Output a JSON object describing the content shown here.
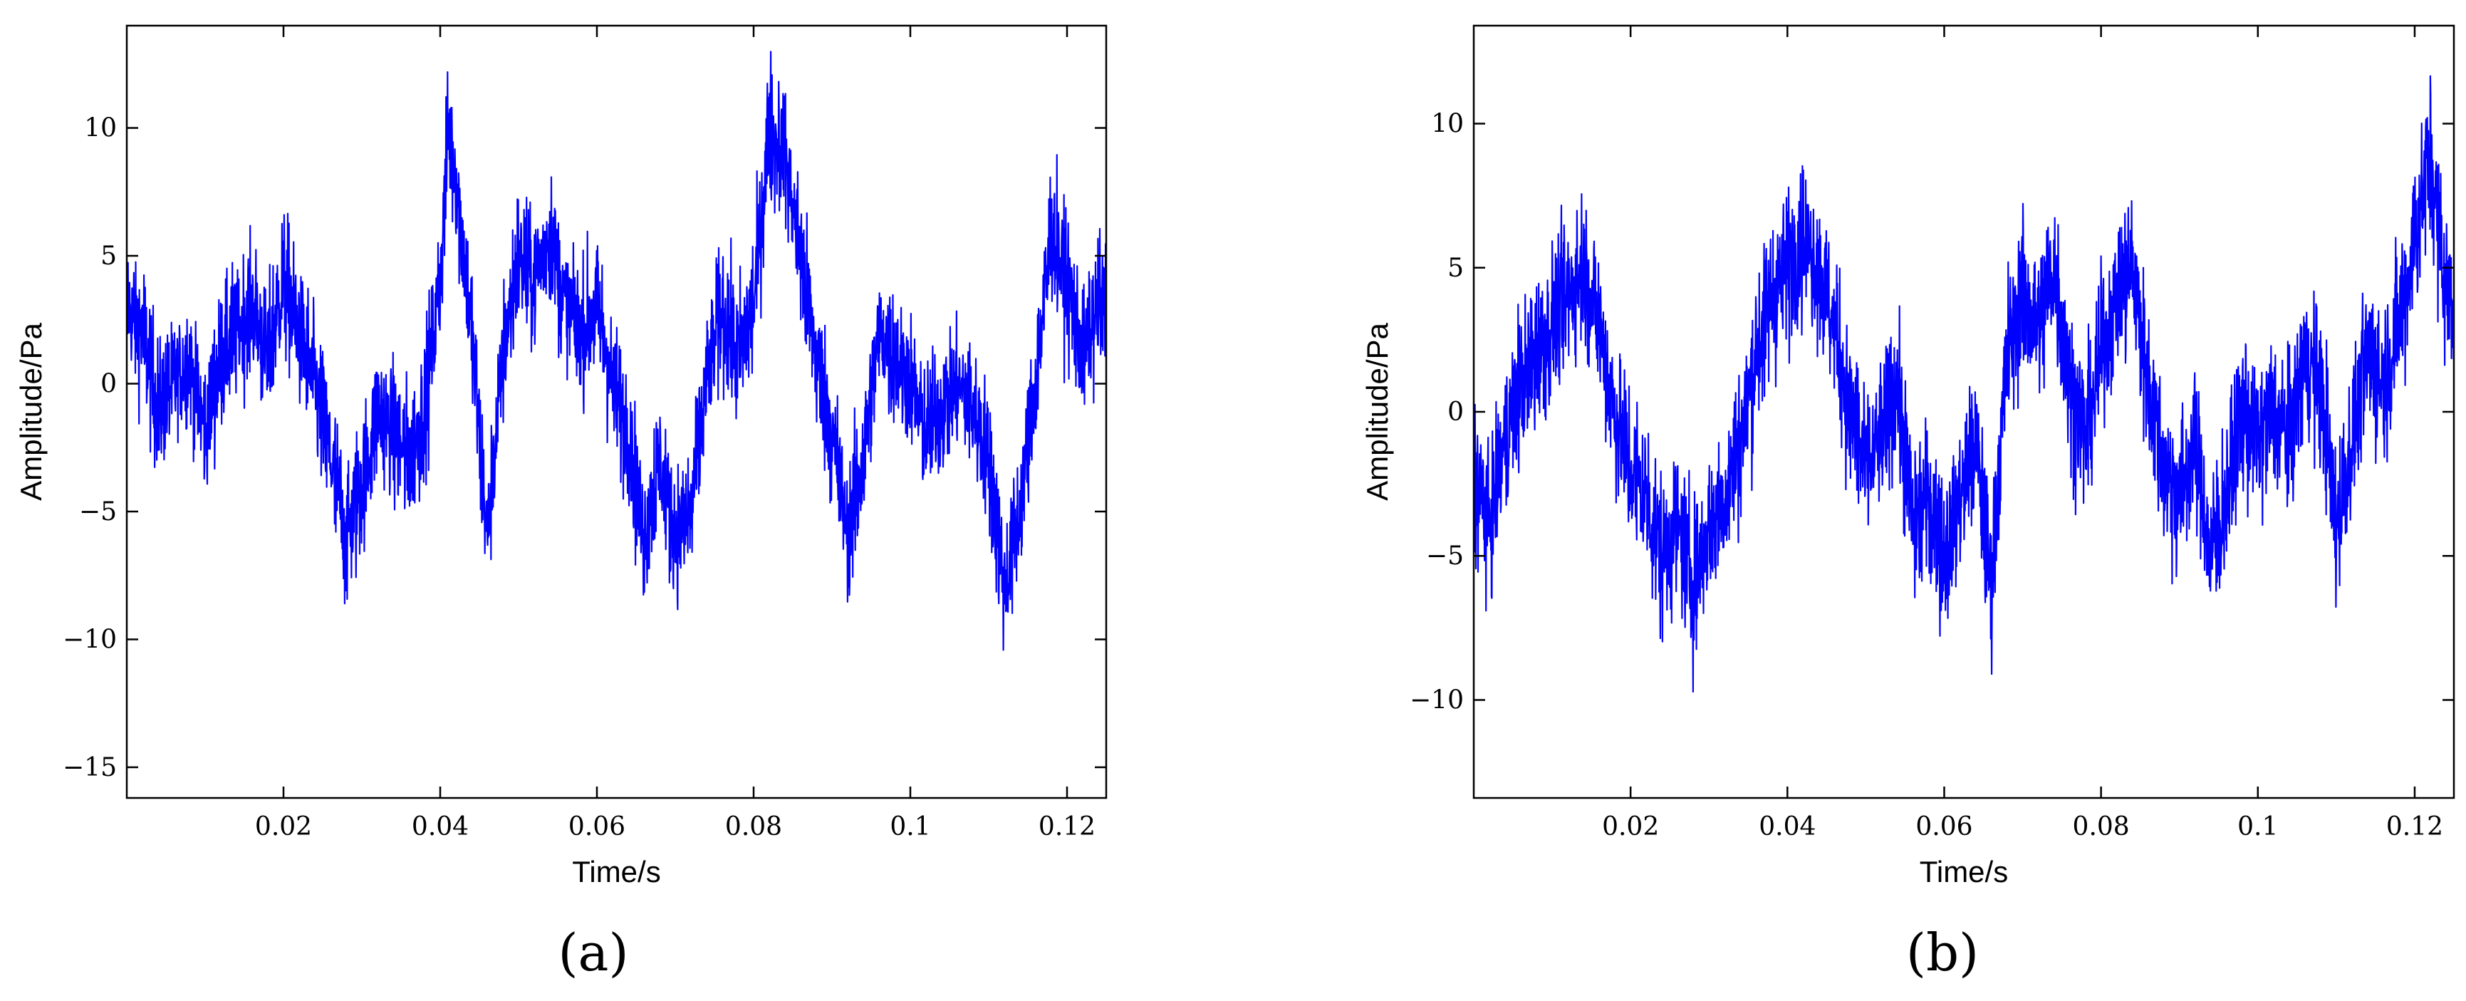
{
  "chart_data": [
    {
      "type": "line",
      "panel_label": "(a)",
      "xlabel": "Time/s",
      "ylabel": "Amplitude/Pa",
      "xlim": [
        0,
        0.125
      ],
      "ylim": [
        -16.2,
        14
      ],
      "xticks": [
        0.02,
        0.04,
        0.06,
        0.08,
        0.1,
        0.12
      ],
      "xtick_labels": [
        "0.02",
        "0.04",
        "0.06",
        "0.08",
        "0.1",
        "0.12"
      ],
      "yticks": [
        -15,
        -10,
        -5,
        0,
        5,
        10
      ],
      "ytick_labels": [
        "−15",
        "−10",
        "−5",
        "0",
        "5",
        "10"
      ],
      "grid": false,
      "series": [
        {
          "color": "#0000ff",
          "x": [
            0,
            0.002,
            0.004,
            0.006,
            0.008,
            0.01,
            0.012,
            0.014,
            0.016,
            0.018,
            0.02,
            0.022,
            0.024,
            0.026,
            0.028,
            0.03,
            0.032,
            0.034,
            0.036,
            0.038,
            0.04,
            0.041,
            0.042,
            0.044,
            0.046,
            0.048,
            0.05,
            0.052,
            0.054,
            0.056,
            0.058,
            0.06,
            0.062,
            0.064,
            0.066,
            0.068,
            0.07,
            0.072,
            0.074,
            0.076,
            0.078,
            0.08,
            0.082,
            0.084,
            0.086,
            0.088,
            0.09,
            0.092,
            0.094,
            0.096,
            0.098,
            0.1,
            0.102,
            0.104,
            0.106,
            0.108,
            0.11,
            0.112,
            0.114,
            0.116,
            0.118,
            0.12,
            0.122,
            0.124
          ],
          "y": [
            3,
            2,
            -1,
            0,
            1,
            -2,
            1,
            2,
            3,
            1,
            4,
            2,
            0,
            -3,
            -6,
            -4,
            -1,
            -2,
            -3,
            -1,
            4,
            10,
            8,
            2,
            -6,
            1,
            5,
            4,
            6,
            3,
            2,
            3,
            0,
            -2,
            -6,
            -3,
            -6,
            -5,
            0,
            3,
            1,
            3,
            10,
            9,
            5,
            1,
            -2,
            -6,
            -3,
            2,
            1,
            0,
            -2,
            -1,
            0,
            -1,
            -3,
            -8,
            -5,
            0,
            6,
            4,
            1,
            3
          ]
        }
      ]
    },
    {
      "type": "line",
      "panel_label": "(b)",
      "xlabel": "Time/s",
      "ylabel": "Amplitude/Pa",
      "xlim": [
        0,
        0.125
      ],
      "ylim": [
        -13.4,
        13.4
      ],
      "xticks": [
        0.02,
        0.04,
        0.06,
        0.08,
        0.1,
        0.12
      ],
      "xtick_labels": [
        "0.02",
        "0.04",
        "0.06",
        "0.08",
        "0.1",
        "0.12"
      ],
      "yticks": [
        -10,
        -5,
        0,
        5,
        10
      ],
      "ytick_labels": [
        "−10",
        "−5",
        "0",
        "5",
        "10"
      ],
      "grid": false,
      "series": [
        {
          "color": "#0000ff",
          "x": [
            0,
            0.002,
            0.004,
            0.006,
            0.008,
            0.01,
            0.012,
            0.014,
            0.016,
            0.018,
            0.02,
            0.022,
            0.024,
            0.026,
            0.028,
            0.03,
            0.032,
            0.034,
            0.036,
            0.038,
            0.04,
            0.042,
            0.044,
            0.046,
            0.048,
            0.05,
            0.052,
            0.054,
            0.056,
            0.058,
            0.06,
            0.062,
            0.064,
            0.066,
            0.068,
            0.07,
            0.072,
            0.074,
            0.076,
            0.078,
            0.08,
            0.082,
            0.084,
            0.086,
            0.088,
            0.09,
            0.092,
            0.094,
            0.096,
            0.098,
            0.1,
            0.102,
            0.104,
            0.106,
            0.108,
            0.11,
            0.112,
            0.114,
            0.116,
            0.118,
            0.12,
            0.122,
            0.124
          ],
          "y": [
            -2,
            -4,
            -1,
            1,
            2,
            3,
            4,
            5,
            3,
            0,
            -2,
            -3,
            -5,
            -4,
            -6,
            -4,
            -3,
            -1,
            2,
            4,
            5,
            6,
            5,
            3,
            0,
            -2,
            -1,
            1,
            -4,
            -3,
            -5,
            -3,
            -1,
            -6,
            2,
            4,
            3,
            5,
            1,
            -1,
            2,
            4,
            5,
            1,
            -2,
            -3,
            -1,
            -5,
            -3,
            0,
            -1,
            0,
            -1,
            2,
            1,
            -4,
            -1,
            2,
            1,
            3,
            6,
            9,
            4
          ]
        }
      ]
    }
  ]
}
